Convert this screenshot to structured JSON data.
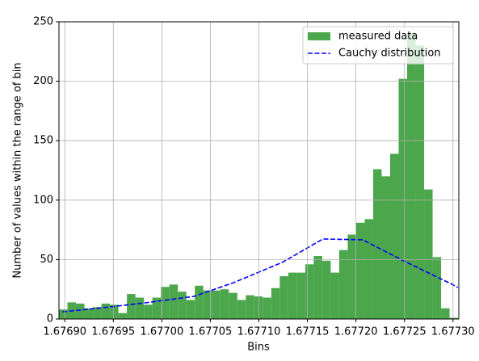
{
  "chart_data": {
    "type": "histogram",
    "xlabel": "Bins",
    "ylabel": "Number of values within the range of bin",
    "series": [
      {
        "name": "measured data",
        "type": "histogram",
        "color": "#4ca64c",
        "bins": [
          1.676894,
          1.67690275,
          1.6769115,
          1.67692025,
          1.676929,
          1.67693775,
          1.6769465,
          1.67695525,
          1.676964,
          1.67697275,
          1.6769815,
          1.67699025,
          1.676999,
          1.67700775,
          1.6770165,
          1.67702525,
          1.677034,
          1.67704275,
          1.6770515,
          1.67706025,
          1.677069,
          1.67707775,
          1.6770865,
          1.67709525,
          1.677104,
          1.67711275,
          1.6771215,
          1.67713025,
          1.677139,
          1.67714775,
          1.6771565,
          1.67716525,
          1.677174,
          1.67718275,
          1.6771915,
          1.67720025,
          1.677209,
          1.67721775,
          1.6772265,
          1.67723525,
          1.677244,
          1.67725275,
          1.6772615,
          1.67727025,
          1.677279,
          1.67728775,
          1.6772965,
          1.67730525
        ],
        "values": [
          8,
          14,
          13,
          9,
          10,
          13,
          12,
          5,
          21,
          18,
          12,
          18,
          27,
          29,
          23,
          16,
          28,
          24,
          24,
          25,
          22,
          16,
          20,
          19,
          18,
          26,
          36,
          39,
          39,
          46,
          53,
          49,
          39,
          58,
          71,
          81,
          84,
          126,
          120,
          139,
          202,
          240,
          230,
          109,
          52,
          9,
          1
        ]
      },
      {
        "name": "Cauchy distribution",
        "type": "line",
        "color": "#0000ff",
        "dashed": true,
        "x": [
          1.6768975,
          1.676939,
          1.676983,
          1.677033,
          1.677074,
          1.677124,
          1.677166,
          1.677207,
          1.677249,
          1.677299,
          1.677305
        ],
        "values": [
          6,
          9.5,
          13.6,
          19,
          30.6,
          47.6,
          67.3,
          66.6,
          49,
          29.2,
          26.5
        ]
      }
    ],
    "xlim": [
      1.676894,
      1.677306
    ],
    "ylim": [
      0,
      250
    ],
    "xticks": [
      {
        "value": 1.6769,
        "label": "1.67690"
      },
      {
        "value": 1.67695,
        "label": "1.67695"
      },
      {
        "value": 1.677,
        "label": "1.67700"
      },
      {
        "value": 1.67705,
        "label": "1.67705"
      },
      {
        "value": 1.6771,
        "label": "1.67710"
      },
      {
        "value": 1.67715,
        "label": "1.67715"
      },
      {
        "value": 1.6772,
        "label": "1.67720"
      },
      {
        "value": 1.67725,
        "label": "1.67725"
      },
      {
        "value": 1.6773,
        "label": "1.67730"
      }
    ],
    "yticks": [
      0,
      50,
      100,
      150,
      200,
      250
    ],
    "grid": true,
    "legend": "upper right"
  }
}
